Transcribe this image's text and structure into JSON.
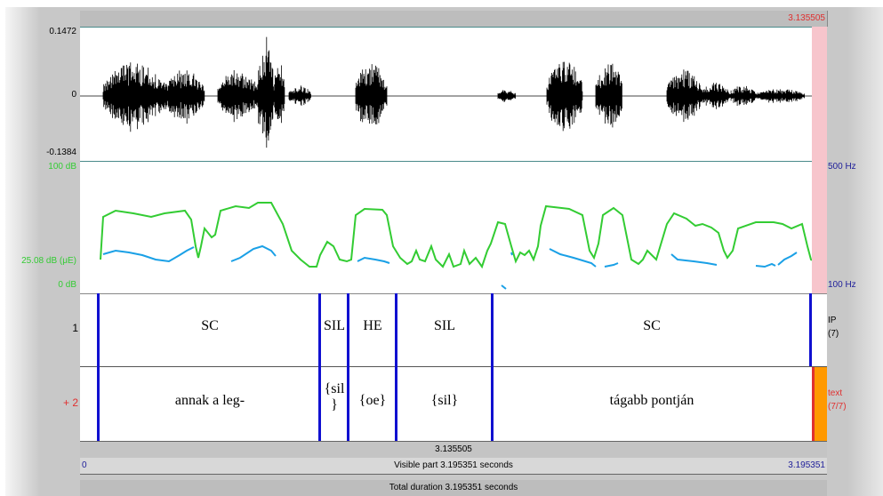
{
  "top_time": "3.135505",
  "signal": {
    "max": "0.1472",
    "zero": "0",
    "min": "-0.1384"
  },
  "spectrogram": {
    "db_top": "100 dB",
    "db_mid": "25.08 dB (μE)",
    "db_bottom": "0 dB",
    "hz_top": "500 Hz",
    "hz_bottom": "100 Hz"
  },
  "tiers": [
    {
      "number": "1",
      "name": "IP",
      "count": "(7)",
      "segments": [
        "SC",
        "SIL",
        "HE",
        "SIL",
        "SC"
      ]
    },
    {
      "number": "+ 2",
      "name": "text",
      "count": "(7/7)",
      "segments": [
        "annak a leg-",
        "{sil\n}",
        "{oe}",
        "{sil}",
        "tágabb pontján"
      ]
    }
  ],
  "cursor_time": "3.135505",
  "visible": {
    "start": "0",
    "label": "Visible part 3.195351 seconds",
    "end": "3.195351"
  },
  "total": "Total duration 3.195351 seconds",
  "colors": {
    "intensity": "#33cc33",
    "pitch": "#1aa0e6",
    "boundary": "#1010d0",
    "selection": "#f7c5cc",
    "tier_highlight": "#ff9900"
  }
}
